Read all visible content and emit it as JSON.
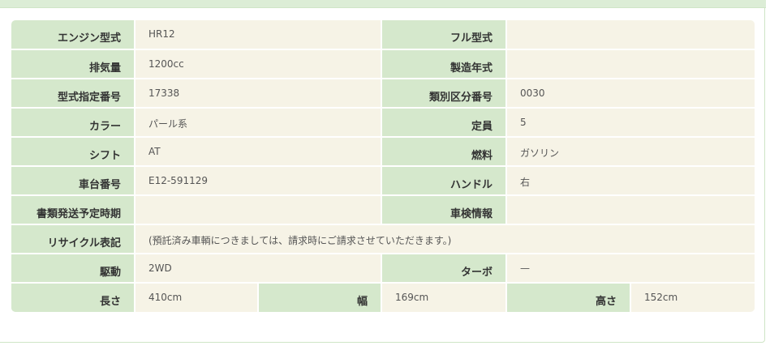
{
  "rows": [
    [
      {
        "label": "エンジン型式",
        "value": "HR12"
      },
      {
        "label": "フル型式",
        "value": ""
      }
    ],
    [
      {
        "label": "排気量",
        "value": "1200cc"
      },
      {
        "label": "製造年式",
        "value": ""
      }
    ],
    [
      {
        "label": "型式指定番号",
        "value": "17338"
      },
      {
        "label": "類別区分番号",
        "value": "0030"
      }
    ],
    [
      {
        "label": "カラー",
        "value": "パール系"
      },
      {
        "label": "定員",
        "value": "5"
      }
    ],
    [
      {
        "label": "シフト",
        "value": "AT"
      },
      {
        "label": "燃料",
        "value": "ガソリン"
      }
    ],
    [
      {
        "label": "車台番号",
        "value": "E12-591129"
      },
      {
        "label": "ハンドル",
        "value": "右"
      }
    ],
    [
      {
        "label": "書類発送予定時期",
        "value": ""
      },
      {
        "label": "車検情報",
        "value": ""
      }
    ],
    [
      {
        "label": "リサイクル表記",
        "value": "(預託済み車輌につきましては、請求時にご請求させていただきます。)"
      }
    ],
    [
      {
        "label": "駆動",
        "value": "2WD"
      },
      {
        "label": "ターボ",
        "value": "—"
      }
    ],
    [
      {
        "label": "長さ",
        "value": "410cm"
      },
      {
        "label": "幅",
        "value": "169cm"
      },
      {
        "label": "高さ",
        "value": "152cm"
      }
    ]
  ]
}
